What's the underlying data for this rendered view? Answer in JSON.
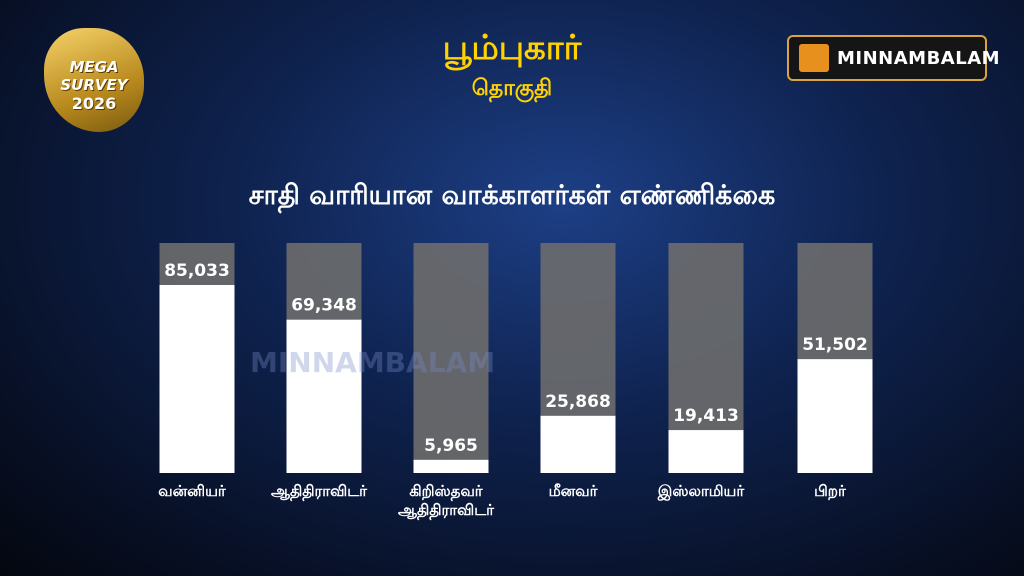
{
  "header": {
    "title": "பூம்புகார்",
    "subtitle": "தொகுதி"
  },
  "logos": {
    "survey": "MEGA SURVEY",
    "survey_year": "2026",
    "brand": "MINNAMBALAM",
    "watermark": "MINNAMBALAM"
  },
  "chart_data": {
    "type": "bar",
    "title": "சாதி வாரியான வாக்காளர்கள்  எண்ணிக்கை",
    "categories": [
      "வன்னியர்",
      "ஆதிதிராவிடர்",
      "கிறிஸ்தவர் ஆதிதிராவிடர்",
      "மீனவர்",
      "இஸ்லாமியர்",
      "பிறர்"
    ],
    "values": [
      85033,
      69348,
      5965,
      25868,
      19413,
      51502
    ],
    "value_labels": [
      "85,033",
      "69,348",
      "5,965",
      "25,868",
      "19,413",
      "51,502"
    ],
    "color": "#ffffff",
    "track_color": "#6d6d6d"
  }
}
